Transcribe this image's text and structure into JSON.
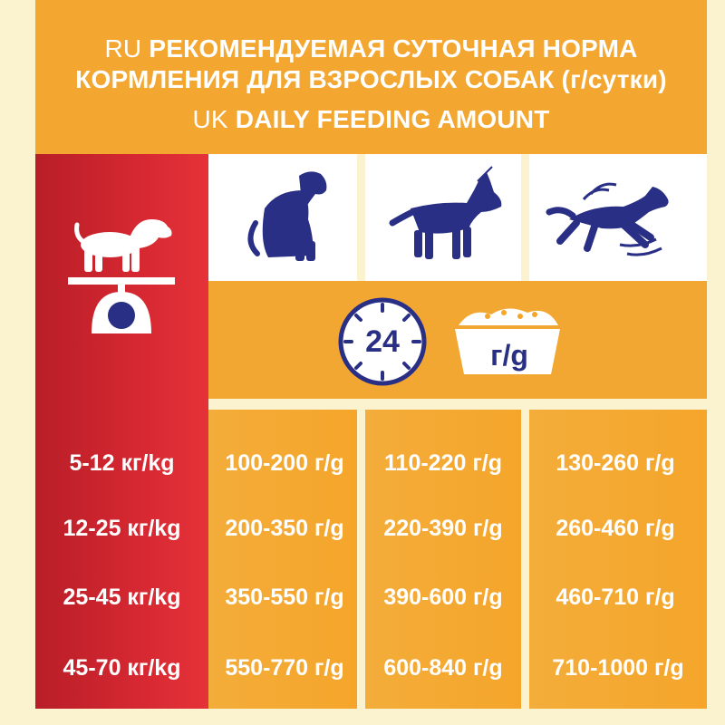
{
  "header": {
    "ru_lang": "RU",
    "ru_line1": "РЕКОМЕНДУЕМАЯ СУТОЧНАЯ НОРМА",
    "ru_line2": "КОРМЛЕНИЯ ДЛЯ ВЗРОСЛЫХ СОБАК (г/сутки)",
    "uk_lang": "UK",
    "uk_line": "DAILY FEEDING AMOUNT"
  },
  "clock_label": "24",
  "bowl_label": "г/g",
  "icons": [
    "dog-on-scale-icon",
    "sitting-dog-icon",
    "standing-dog-icon",
    "running-dog-icon",
    "clock-icon",
    "food-bowl-icon"
  ],
  "colors": {
    "header": "#f3a630",
    "weight_column": "#d62832",
    "cells": "#f5a52a",
    "dog_blue": "#2a2f86",
    "background": "#fbf3cf"
  },
  "rows": [
    {
      "weight": "5-12 кг/kg",
      "low": "100-200 г/g",
      "medium": "110-220 г/g",
      "high": "130-260 г/g"
    },
    {
      "weight": "12-25 кг/kg",
      "low": "200-350 г/g",
      "medium": "220-390 г/g",
      "high": "260-460 г/g"
    },
    {
      "weight": "25-45 кг/kg",
      "low": "350-550 г/g",
      "medium": "390-600 г/g",
      "high": "460-710 г/g"
    },
    {
      "weight": "45-70 кг/kg",
      "low": "550-770 г/g",
      "medium": "600-840 г/g",
      "high": "710-1000 г/g"
    }
  ]
}
